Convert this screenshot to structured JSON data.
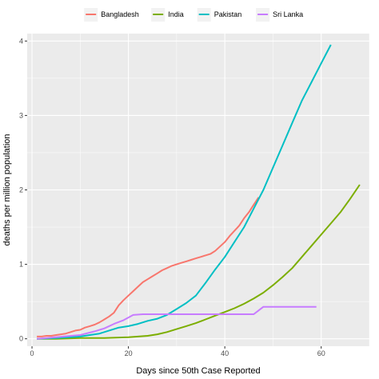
{
  "chart_data": {
    "type": "line",
    "xlabel": "Days since 50th Case Reported",
    "ylabel": "deaths per million population",
    "xlim": [
      -1,
      70
    ],
    "ylim": [
      -0.1,
      4.1
    ],
    "xticks": [
      0,
      20,
      40,
      60
    ],
    "yticks": [
      0,
      1,
      2,
      3,
      4
    ],
    "grid": true,
    "background": "#ebebeb",
    "legend_position": "top",
    "series": [
      {
        "name": "Bangladesh",
        "color": "#F8766D",
        "x": [
          1,
          2,
          3,
          4,
          5,
          6,
          7,
          8,
          9,
          10,
          11,
          12,
          13,
          14,
          15,
          16,
          17,
          18,
          19,
          20,
          21,
          22,
          23,
          24,
          25,
          26,
          27,
          28,
          29,
          30,
          31,
          32,
          33,
          34,
          35,
          36,
          37,
          38,
          39,
          40,
          41,
          42,
          43,
          44,
          45,
          46,
          47
        ],
        "y": [
          0.03,
          0.03,
          0.04,
          0.04,
          0.05,
          0.06,
          0.07,
          0.09,
          0.11,
          0.12,
          0.15,
          0.17,
          0.19,
          0.22,
          0.26,
          0.3,
          0.35,
          0.45,
          0.52,
          0.58,
          0.64,
          0.7,
          0.76,
          0.8,
          0.84,
          0.88,
          0.92,
          0.95,
          0.98,
          1.0,
          1.02,
          1.04,
          1.06,
          1.08,
          1.1,
          1.12,
          1.14,
          1.18,
          1.24,
          1.3,
          1.38,
          1.45,
          1.52,
          1.62,
          1.7,
          1.8,
          1.9
        ]
      },
      {
        "name": "India",
        "color": "#7CAE00",
        "x": [
          1,
          5,
          10,
          15,
          20,
          24,
          26,
          28,
          30,
          32,
          34,
          36,
          38,
          40,
          42,
          44,
          46,
          48,
          50,
          52,
          54,
          56,
          58,
          60,
          62,
          64,
          66,
          68
        ],
        "y": [
          0.0,
          0.0,
          0.01,
          0.01,
          0.02,
          0.04,
          0.06,
          0.09,
          0.13,
          0.17,
          0.21,
          0.26,
          0.31,
          0.36,
          0.41,
          0.47,
          0.54,
          0.62,
          0.72,
          0.83,
          0.95,
          1.1,
          1.25,
          1.4,
          1.55,
          1.7,
          1.88,
          2.07
        ]
      },
      {
        "name": "Pakistan",
        "color": "#00BFC4",
        "x": [
          1,
          5,
          10,
          12,
          14,
          16,
          18,
          20,
          22,
          24,
          26,
          28,
          30,
          32,
          34,
          36,
          38,
          40,
          42,
          44,
          46,
          48,
          50,
          52,
          54,
          56,
          58,
          60,
          62
        ],
        "y": [
          0.0,
          0.01,
          0.03,
          0.05,
          0.07,
          0.11,
          0.15,
          0.17,
          0.2,
          0.24,
          0.27,
          0.32,
          0.4,
          0.48,
          0.58,
          0.75,
          0.93,
          1.1,
          1.3,
          1.5,
          1.75,
          2.0,
          2.3,
          2.6,
          2.9,
          3.2,
          3.45,
          3.7,
          3.95
        ]
      },
      {
        "name": "Sri Lanka",
        "color": "#C77CFF",
        "x": [
          1,
          10,
          13,
          15,
          17,
          19,
          21,
          23,
          25,
          30,
          35,
          40,
          45,
          46,
          47,
          48,
          50,
          55,
          59
        ],
        "y": [
          0.0,
          0.05,
          0.1,
          0.14,
          0.2,
          0.25,
          0.32,
          0.33,
          0.33,
          0.33,
          0.33,
          0.33,
          0.33,
          0.33,
          0.38,
          0.43,
          0.43,
          0.43,
          0.43
        ]
      }
    ]
  }
}
